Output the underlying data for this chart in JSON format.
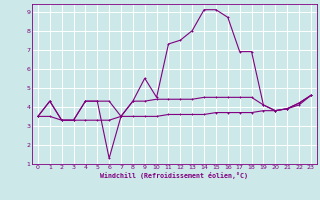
{
  "xlabel": "Windchill (Refroidissement éolien,°C)",
  "xlim": [
    -0.5,
    23.5
  ],
  "ylim": [
    1,
    9.4
  ],
  "xticks": [
    0,
    1,
    2,
    3,
    4,
    5,
    6,
    7,
    8,
    9,
    10,
    11,
    12,
    13,
    14,
    15,
    16,
    17,
    18,
    19,
    20,
    21,
    22,
    23
  ],
  "yticks": [
    1,
    2,
    3,
    4,
    5,
    6,
    7,
    8,
    9
  ],
  "bg_color": "#cce8e8",
  "line_color": "#800080",
  "grid_color": "#ffffff",
  "line1_x": [
    0,
    1,
    2,
    3,
    4,
    5,
    6,
    7,
    8,
    9,
    10,
    11,
    12,
    13,
    14,
    15,
    16,
    17,
    18,
    19,
    20,
    21,
    22,
    23
  ],
  "line1_y": [
    3.5,
    4.3,
    3.3,
    3.3,
    4.3,
    4.3,
    1.3,
    3.5,
    4.3,
    5.5,
    4.5,
    7.3,
    7.5,
    8.0,
    9.1,
    9.1,
    8.7,
    6.9,
    6.9,
    4.1,
    3.8,
    3.9,
    4.2,
    4.6
  ],
  "line2_x": [
    0,
    1,
    2,
    3,
    4,
    5,
    6,
    7,
    8,
    9,
    10,
    11,
    12,
    13,
    14,
    15,
    16,
    17,
    18,
    19,
    20,
    21,
    22,
    23
  ],
  "line2_y": [
    3.5,
    4.3,
    3.3,
    3.3,
    4.3,
    4.3,
    4.3,
    3.5,
    4.3,
    4.3,
    4.4,
    4.4,
    4.4,
    4.4,
    4.5,
    4.5,
    4.5,
    4.5,
    4.5,
    4.1,
    3.8,
    3.9,
    4.2,
    4.6
  ],
  "line3_x": [
    0,
    1,
    2,
    3,
    4,
    5,
    6,
    7,
    8,
    9,
    10,
    11,
    12,
    13,
    14,
    15,
    16,
    17,
    18,
    19,
    20,
    21,
    22,
    23
  ],
  "line3_y": [
    3.5,
    3.5,
    3.3,
    3.3,
    3.3,
    3.3,
    3.3,
    3.5,
    3.5,
    3.5,
    3.5,
    3.6,
    3.6,
    3.6,
    3.6,
    3.7,
    3.7,
    3.7,
    3.7,
    3.8,
    3.8,
    3.9,
    4.1,
    4.6
  ]
}
